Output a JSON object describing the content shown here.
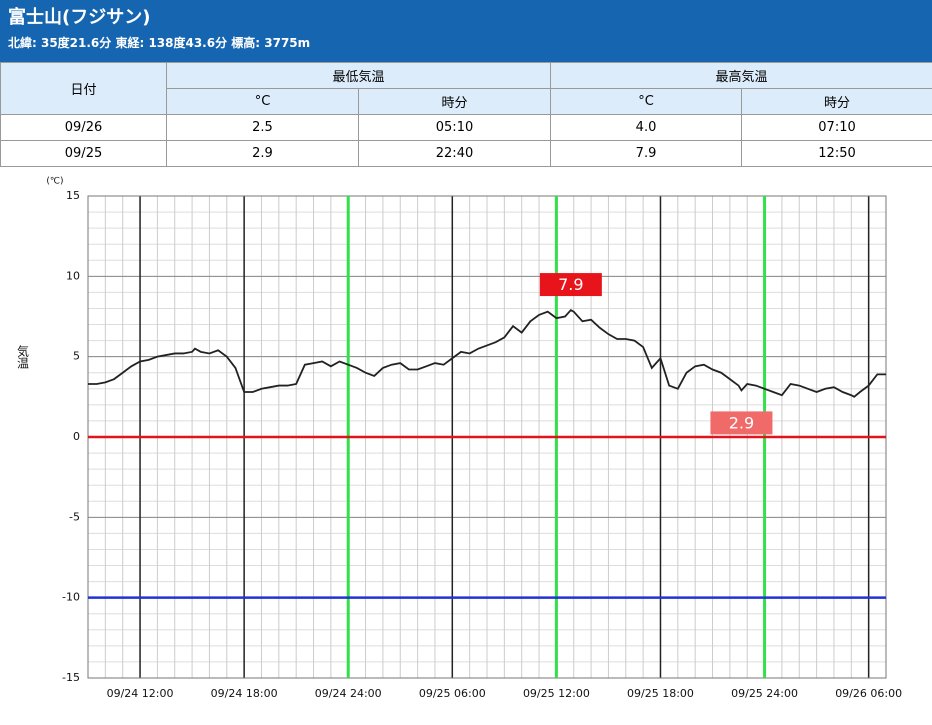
{
  "header": {
    "title": "富士山(フジサン)",
    "subtitle": "北緯: 35度21.6分 東経: 138度43.6分 標高: 3775m"
  },
  "table": {
    "headers": [
      "日付",
      "最低気温",
      "最高気温"
    ],
    "subheaders": [
      "°C",
      "時分",
      "°C",
      "時分"
    ],
    "rows": [
      [
        "09/26",
        "2.5",
        "05:10",
        "4.0",
        "07:10"
      ],
      [
        "09/25",
        "2.9",
        "22:40",
        "7.9",
        "12:50"
      ]
    ]
  },
  "chart_data": {
    "type": "line",
    "y_unit": "(℃)",
    "ylabel": "気温",
    "color": "#222222",
    "x": [
      "09/24 09:00",
      "09/24 09:30",
      "09/24 10:00",
      "09/24 10:30",
      "09/24 11:00",
      "09/24 11:30",
      "09/24 12:00",
      "09/24 12:30",
      "09/24 13:00",
      "09/24 13:30",
      "09/24 14:00",
      "09/24 14:30",
      "09/24 15:00",
      "09/24 15:10",
      "09/24 15:30",
      "09/24 16:00",
      "09/24 16:30",
      "09/24 17:00",
      "09/24 17:30",
      "09/24 18:00",
      "09/24 18:30",
      "09/24 19:00",
      "09/24 19:30",
      "09/24 20:00",
      "09/24 20:30",
      "09/24 21:00",
      "09/24 21:30",
      "09/24 22:00",
      "09/24 22:30",
      "09/24 23:00",
      "09/24 23:30",
      "09/25 00:00",
      "09/25 00:30",
      "09/25 01:00",
      "09/25 01:30",
      "09/25 02:00",
      "09/25 02:30",
      "09/25 03:00",
      "09/25 03:30",
      "09/25 04:00",
      "09/25 04:30",
      "09/25 05:00",
      "09/25 05:30",
      "09/25 06:00",
      "09/25 06:30",
      "09/25 07:00",
      "09/25 07:30",
      "09/25 08:00",
      "09/25 08:30",
      "09/25 09:00",
      "09/25 09:30",
      "09/25 10:00",
      "09/25 10:30",
      "09/25 11:00",
      "09/25 11:30",
      "09/25 12:00",
      "09/25 12:30",
      "09/25 12:50",
      "09/25 13:00",
      "09/25 13:30",
      "09/25 14:00",
      "09/25 14:30",
      "09/25 15:00",
      "09/25 15:30",
      "09/25 16:00",
      "09/25 16:30",
      "09/25 17:00",
      "09/25 17:30",
      "09/25 18:00",
      "09/25 18:30",
      "09/25 19:00",
      "09/25 19:30",
      "09/25 20:00",
      "09/25 20:30",
      "09/25 21:00",
      "09/25 21:30",
      "09/25 22:00",
      "09/25 22:30",
      "09/25 22:40",
      "09/25 23:00",
      "09/25 23:30",
      "09/26 00:00",
      "09/26 00:30",
      "09/26 01:00",
      "09/26 01:30",
      "09/26 02:00",
      "09/26 02:30",
      "09/26 03:00",
      "09/26 03:30",
      "09/26 04:00",
      "09/26 04:30",
      "09/26 05:00",
      "09/26 05:10",
      "09/26 05:30",
      "09/26 06:00",
      "09/26 06:30",
      "09/26 07:00"
    ],
    "values": [
      3.3,
      3.3,
      3.4,
      3.6,
      4.0,
      4.4,
      4.7,
      4.8,
      5.0,
      5.1,
      5.2,
      5.2,
      5.3,
      5.5,
      5.3,
      5.2,
      5.4,
      5.0,
      4.3,
      2.8,
      2.8,
      3.0,
      3.1,
      3.2,
      3.2,
      3.3,
      4.5,
      4.6,
      4.7,
      4.4,
      4.7,
      4.5,
      4.3,
      4.0,
      3.8,
      4.3,
      4.5,
      4.6,
      4.2,
      4.2,
      4.4,
      4.6,
      4.5,
      4.9,
      5.3,
      5.2,
      5.5,
      5.7,
      5.9,
      6.2,
      6.9,
      6.5,
      7.2,
      7.6,
      7.8,
      7.4,
      7.5,
      7.9,
      7.8,
      7.2,
      7.3,
      6.8,
      6.4,
      6.1,
      6.1,
      6.0,
      5.6,
      4.3,
      4.9,
      3.2,
      3.0,
      4.0,
      4.4,
      4.5,
      4.2,
      4.0,
      3.6,
      3.2,
      2.9,
      3.3,
      3.2,
      3.0,
      2.8,
      2.6,
      3.3,
      3.2,
      3.0,
      2.8,
      3.0,
      3.1,
      2.8,
      2.6,
      2.5,
      2.8,
      3.2,
      3.9,
      3.9
    ],
    "xlim": [
      "09/24 09:00",
      "09/26 07:00"
    ],
    "xticks": [
      "09/24 12:00",
      "09/24 18:00",
      "09/24 24:00",
      "09/25 06:00",
      "09/25 12:00",
      "09/25 18:00",
      "09/25 24:00",
      "09/26 06:00"
    ],
    "ylim": [
      -15,
      15
    ],
    "yticks": [
      -15,
      -10,
      -5,
      0,
      5,
      10,
      15
    ],
    "grid": true,
    "highlight_x": {
      "color": "#33e04a",
      "x": [
        "09/24 24:00",
        "09/25 12:00",
        "09/25 24:00"
      ]
    },
    "reference_lines": [
      {
        "value": 0,
        "color": "#e0141c"
      },
      {
        "value": -10,
        "color": "#2233d6"
      }
    ],
    "annotations": [
      {
        "x": "09/25 12:50",
        "value": 7.9,
        "color": "#e8141b",
        "position": "above"
      },
      {
        "x": "09/25 22:40",
        "value": 2.9,
        "color": "#f06a6a",
        "position": "below"
      }
    ]
  }
}
